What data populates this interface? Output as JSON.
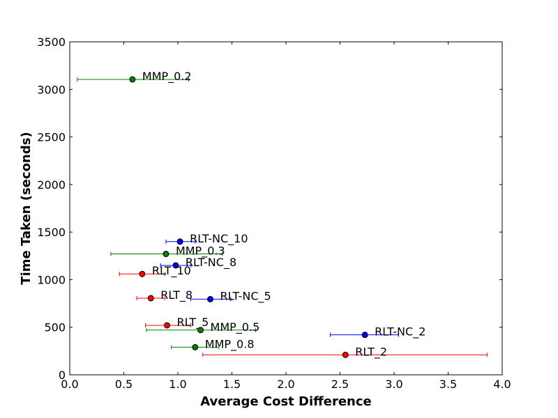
{
  "chart_data": {
    "type": "scatter",
    "xlabel": "Average Cost Difference",
    "ylabel": "Time Taken (seconds)",
    "xlim": [
      0.0,
      4.0
    ],
    "ylim": [
      0,
      3500
    ],
    "xticks": [
      "0.0",
      "0.5",
      "1.0",
      "1.5",
      "2.0",
      "2.5",
      "3.0",
      "3.5",
      "4.0"
    ],
    "yticks": [
      "0",
      "500",
      "1000",
      "1500",
      "2000",
      "2500",
      "3000",
      "3500"
    ],
    "grid": false,
    "points": [
      {
        "label": "MMP_0.2",
        "x": 0.58,
        "y": 3105,
        "xerr_low": 0.07,
        "xerr_high": 1.1,
        "color": "#008000"
      },
      {
        "label": "RLT-NC_10",
        "x": 1.02,
        "y": 1400,
        "xerr_low": 0.89,
        "xerr_high": 1.16,
        "color": "#0000ff"
      },
      {
        "label": "MMP_0.3",
        "x": 0.89,
        "y": 1270,
        "xerr_low": 0.38,
        "xerr_high": 1.41,
        "color": "#008000"
      },
      {
        "label": "RLT-NC_8",
        "x": 0.98,
        "y": 1150,
        "xerr_low": 0.84,
        "xerr_high": 1.12,
        "color": "#0000ff"
      },
      {
        "label": "RLT_10",
        "x": 0.67,
        "y": 1060,
        "xerr_low": 0.46,
        "xerr_high": 0.88,
        "color": "#ff0000"
      },
      {
        "label": "RLT_8",
        "x": 0.75,
        "y": 805,
        "xerr_low": 0.62,
        "xerr_high": 0.88,
        "color": "#ff0000"
      },
      {
        "label": "RLT-NC_5",
        "x": 1.3,
        "y": 795,
        "xerr_low": 1.12,
        "xerr_high": 1.49,
        "color": "#0000ff"
      },
      {
        "label": "RLT_5",
        "x": 0.9,
        "y": 520,
        "xerr_low": 0.7,
        "xerr_high": 1.12,
        "color": "#ff0000"
      },
      {
        "label": "MMP_0.5",
        "x": 1.21,
        "y": 470,
        "xerr_low": 0.71,
        "xerr_high": 1.72,
        "color": "#008000"
      },
      {
        "label": "RLT-NC_2",
        "x": 2.73,
        "y": 420,
        "xerr_low": 2.41,
        "xerr_high": 3.04,
        "color": "#0000ff"
      },
      {
        "label": "MMP_0.8",
        "x": 1.16,
        "y": 290,
        "xerr_low": 0.94,
        "xerr_high": 1.38,
        "color": "#008000"
      },
      {
        "label": "RLT_2",
        "x": 2.55,
        "y": 210,
        "xerr_low": 1.23,
        "xerr_high": 3.86,
        "color": "#ff0000"
      }
    ]
  }
}
